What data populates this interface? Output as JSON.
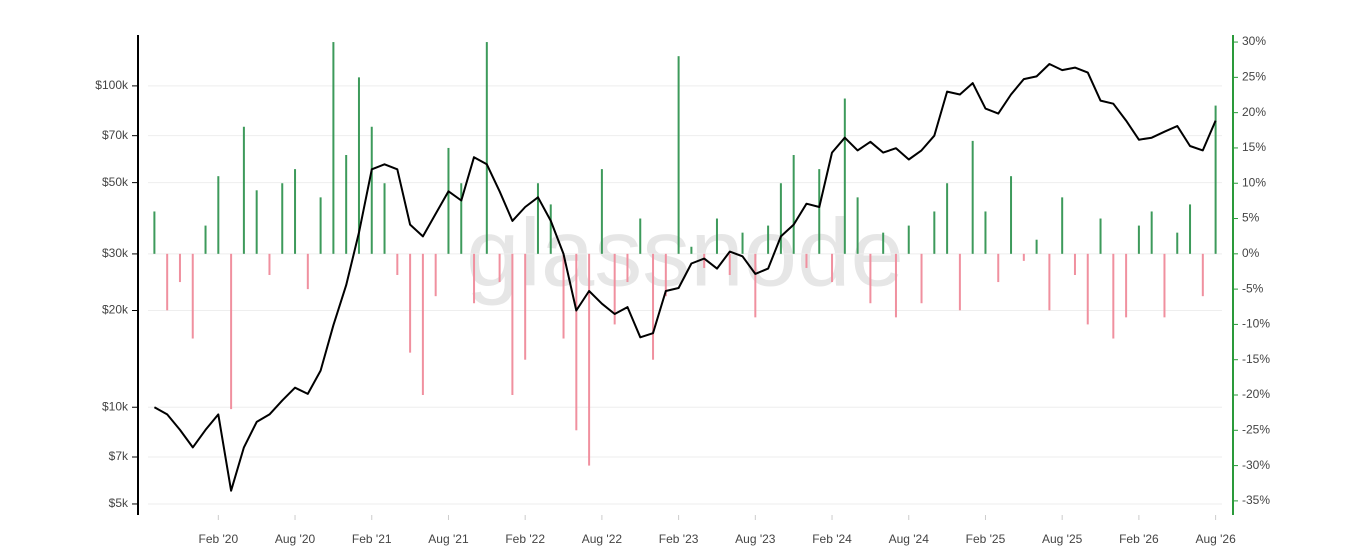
{
  "chart_data": {
    "type": "bar-line",
    "watermark": "glassnode",
    "x": [
      "2019-09",
      "2019-10",
      "2019-11",
      "2019-12",
      "2020-01",
      "2020-02",
      "2020-03",
      "2020-04",
      "2020-05",
      "2020-06",
      "2020-07",
      "2020-08",
      "2020-09",
      "2020-10",
      "2020-11",
      "2020-12",
      "2021-01",
      "2021-02",
      "2021-03",
      "2021-04",
      "2021-05",
      "2021-06",
      "2021-07",
      "2021-08",
      "2021-09",
      "2021-10",
      "2021-11",
      "2021-12",
      "2022-01",
      "2022-02",
      "2022-03",
      "2022-04",
      "2022-05",
      "2022-06",
      "2022-07",
      "2022-08",
      "2022-09",
      "2022-10",
      "2022-11",
      "2022-12",
      "2023-01",
      "2023-02",
      "2023-03",
      "2023-04",
      "2023-05",
      "2023-06",
      "2023-07",
      "2023-08",
      "2023-09",
      "2023-10",
      "2023-11",
      "2023-12",
      "2024-01",
      "2024-02",
      "2024-03",
      "2024-04",
      "2024-05",
      "2024-06",
      "2024-07",
      "2024-08",
      "2024-09",
      "2024-10",
      "2024-11",
      "2024-12",
      "2025-01",
      "2025-02",
      "2025-03",
      "2025-04",
      "2025-05",
      "2025-06",
      "2025-07",
      "2025-08",
      "2025-09",
      "2025-10",
      "2025-11",
      "2025-12",
      "2026-01",
      "2026-02",
      "2026-03",
      "2026-04",
      "2026-05",
      "2026-06",
      "2026-07",
      "2026-08"
    ],
    "xlim": [
      "2019-09",
      "2026-08"
    ],
    "xticks": [
      {
        "value": "2020-02",
        "label": "Feb '20"
      },
      {
        "value": "2020-08",
        "label": "Aug '20"
      },
      {
        "value": "2021-02",
        "label": "Feb '21"
      },
      {
        "value": "2021-08",
        "label": "Aug '21"
      },
      {
        "value": "2022-02",
        "label": "Feb '22"
      },
      {
        "value": "2022-08",
        "label": "Aug '22"
      },
      {
        "value": "2023-02",
        "label": "Feb '23"
      },
      {
        "value": "2023-08",
        "label": "Aug '23"
      },
      {
        "value": "2024-02",
        "label": "Feb '24"
      },
      {
        "value": "2024-08",
        "label": "Aug '24"
      },
      {
        "value": "2025-02",
        "label": "Feb '25"
      },
      {
        "value": "2025-08",
        "label": "Aug '25"
      },
      {
        "value": "2026-02",
        "label": "Feb '26"
      },
      {
        "value": "2026-08",
        "label": "Aug '26"
      }
    ],
    "ylim": [
      4620,
      144000
    ],
    "log_y": true,
    "yticks": [
      {
        "value": 5000,
        "label": "$5k"
      },
      {
        "value": 7000,
        "label": "$7k"
      },
      {
        "value": 10000,
        "label": "$10k"
      },
      {
        "value": 20000,
        "label": "$20k"
      },
      {
        "value": 30000,
        "label": "$30k"
      },
      {
        "value": 50000,
        "label": "$50k"
      },
      {
        "value": 70000,
        "label": "$70k"
      },
      {
        "value": 100000,
        "label": "$100k"
      }
    ],
    "y2lim": [
      -37,
      31
    ],
    "y2ticks": [
      {
        "value": -35,
        "label": "-35%"
      },
      {
        "value": -30,
        "label": "-30%"
      },
      {
        "value": -25,
        "label": "-25%"
      },
      {
        "value": -20,
        "label": "-20%"
      },
      {
        "value": -15,
        "label": "-15%"
      },
      {
        "value": -10,
        "label": "-10%"
      },
      {
        "value": -5,
        "label": "-5%"
      },
      {
        "value": 0,
        "label": "0%"
      },
      {
        "value": 5,
        "label": "5%"
      },
      {
        "value": 10,
        "label": "10%"
      },
      {
        "value": 15,
        "label": "15%"
      },
      {
        "value": 20,
        "label": "20%"
      },
      {
        "value": 25,
        "label": "25%"
      },
      {
        "value": 30,
        "label": "30%"
      }
    ],
    "grid": true,
    "series": [
      {
        "type": "line",
        "color": "#000000",
        "values": [
          10000,
          9500,
          8500,
          7500,
          8500,
          9500,
          5500,
          7500,
          9000,
          9500,
          10500,
          11500,
          11000,
          13000,
          18000,
          24000,
          35000,
          55000,
          57000,
          55000,
          37000,
          34000,
          40000,
          47000,
          44000,
          60000,
          57000,
          47000,
          38000,
          42000,
          45000,
          38000,
          30000,
          20000,
          23000,
          21000,
          19500,
          20500,
          16500,
          17000,
          23000,
          23500,
          28000,
          29000,
          27000,
          30500,
          29500,
          26000,
          27000,
          34000,
          37000,
          43000,
          42000,
          62000,
          69000,
          63000,
          67000,
          62000,
          64000,
          59000,
          63000,
          70000,
          96000,
          94000,
          102000,
          85000,
          82000,
          94000,
          105000,
          107000,
          117000,
          112000,
          114000,
          110000,
          90000,
          88000,
          78000,
          68000,
          69000,
          72000,
          75000,
          65000,
          63000,
          78000
        ]
      },
      {
        "type": "bar",
        "axis": "y2",
        "color": "#3d9a5b",
        "negative_color": "#f0909f",
        "values": [
          6,
          -8,
          -4,
          -12,
          4,
          11,
          -22,
          18,
          9,
          -3,
          10,
          12,
          -5,
          8,
          30,
          14,
          25,
          18,
          10,
          -3,
          -14,
          -20,
          -6,
          15,
          10,
          -7,
          30,
          -4,
          -20,
          -15,
          10,
          7,
          -12,
          -25,
          -30,
          12,
          -10,
          -4,
          5,
          -15,
          -6,
          28,
          1,
          -2,
          5,
          -3,
          3,
          -9,
          4,
          10,
          14,
          -2,
          12,
          -4,
          22,
          8,
          -7,
          3,
          -9,
          4,
          -7,
          6,
          10,
          -8,
          16,
          6,
          -4,
          11,
          -1,
          2,
          -8,
          8,
          -3,
          -10,
          5,
          -12,
          -9,
          4,
          6,
          -9,
          3,
          7,
          -6,
          21
        ]
      }
    ]
  }
}
